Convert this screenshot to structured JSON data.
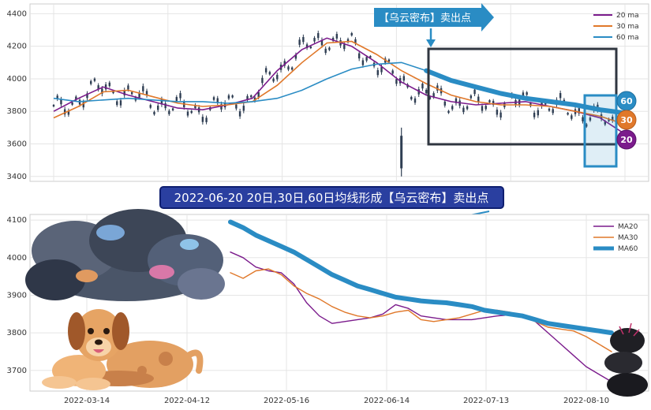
{
  "top_chart": {
    "banner": "【乌云密布】卖出点",
    "legend": [
      "20 ma",
      "30 ma",
      "60 ma"
    ],
    "badges": [
      "60",
      "30",
      "20"
    ],
    "colors": {
      "ma20": "#7b1b8c",
      "ma30": "#e0782a",
      "ma60": "#2a8cc4",
      "candle": "#2f3e53",
      "box": "#2f3640",
      "highlight": "#2a8cc4"
    }
  },
  "caption": "2022-06-20 20日,30日,60日均线形成【乌云密布】卖出点",
  "bottom_chart": {
    "legend": [
      "MA20",
      "MA30",
      "MA60"
    ],
    "colors": {
      "ma20": "#7b1b8c",
      "ma30": "#e0782a",
      "ma60": "#2a8cc4"
    }
  },
  "chart_data": [
    {
      "type": "line",
      "ylim": [
        3370,
        4460
      ],
      "yticks": [
        3400,
        3600,
        3800,
        4000,
        4200,
        4400
      ],
      "x_range": [
        0,
        230
      ],
      "series": [
        {
          "name": "20 ma",
          "x": [
            0,
            10,
            20,
            30,
            40,
            50,
            60,
            70,
            80,
            90,
            100,
            110,
            120,
            130,
            140,
            150,
            160,
            170,
            180,
            190,
            200,
            210,
            220,
            230
          ],
          "y": [
            3800,
            3880,
            3950,
            3900,
            3860,
            3820,
            3810,
            3840,
            3880,
            4050,
            4180,
            4250,
            4200,
            4100,
            3980,
            3900,
            3860,
            3840,
            3850,
            3860,
            3830,
            3800,
            3760,
            3660
          ]
        },
        {
          "name": "30 ma",
          "x": [
            0,
            10,
            20,
            30,
            40,
            50,
            60,
            70,
            80,
            90,
            100,
            110,
            120,
            130,
            140,
            150,
            160,
            170,
            180,
            190,
            200,
            210,
            220,
            230
          ],
          "y": [
            3760,
            3830,
            3920,
            3930,
            3890,
            3850,
            3830,
            3840,
            3860,
            3960,
            4100,
            4220,
            4230,
            4150,
            4050,
            3970,
            3900,
            3860,
            3840,
            3840,
            3830,
            3800,
            3770,
            3720
          ]
        },
        {
          "name": "60 ma",
          "x": [
            0,
            10,
            20,
            30,
            40,
            50,
            60,
            70,
            80,
            90,
            100,
            110,
            120,
            130,
            140,
            150,
            160,
            170,
            180,
            190,
            200,
            210,
            220,
            230
          ],
          "y": [
            3880,
            3860,
            3870,
            3880,
            3870,
            3860,
            3860,
            3850,
            3860,
            3880,
            3930,
            4000,
            4060,
            4090,
            4100,
            4050,
            3990,
            3950,
            3910,
            3880,
            3860,
            3840,
            3810,
            3790
          ]
        }
      ]
    },
    {
      "type": "line",
      "ylim": [
        3645,
        4115
      ],
      "yticks": [
        3700,
        3800,
        3900,
        4000,
        4100
      ],
      "xticks": [
        "2022-03-14",
        "2022-04-12",
        "2022-05-16",
        "2022-06-14",
        "2022-07-13",
        "2022-08-10"
      ],
      "series": [
        {
          "name": "MA20",
          "x": [
            0,
            4,
            8,
            12,
            16,
            20,
            24,
            28,
            32,
            36,
            40,
            44,
            48,
            52,
            56,
            60,
            64,
            68,
            72,
            76,
            80,
            84,
            88,
            92,
            96,
            100,
            104,
            108,
            112,
            116,
            120
          ],
          "y": [
            4015,
            4000,
            3975,
            3965,
            3960,
            3930,
            3880,
            3845,
            3825,
            3830,
            3835,
            3840,
            3850,
            3875,
            3865,
            3845,
            3840,
            3835,
            3835,
            3835,
            3840,
            3845,
            3848,
            3845,
            3830,
            3800,
            3770,
            3740,
            3710,
            3690,
            3670
          ]
        },
        {
          "name": "MA30",
          "x": [
            0,
            4,
            8,
            12,
            16,
            20,
            24,
            28,
            32,
            36,
            40,
            44,
            48,
            52,
            56,
            60,
            64,
            68,
            72,
            76,
            80,
            84,
            88,
            92,
            96,
            100,
            104,
            108,
            112,
            116,
            120
          ],
          "y": [
            3960,
            3945,
            3965,
            3970,
            3955,
            3925,
            3905,
            3890,
            3870,
            3855,
            3845,
            3840,
            3845,
            3855,
            3860,
            3835,
            3830,
            3835,
            3840,
            3850,
            3860,
            3860,
            3855,
            3845,
            3830,
            3815,
            3810,
            3805,
            3790,
            3770,
            3750
          ]
        },
        {
          "name": "MA60",
          "x": [
            0,
            4,
            8,
            12,
            16,
            20,
            24,
            28,
            32,
            36,
            40,
            44,
            48,
            52,
            56,
            60,
            64,
            68,
            72,
            76,
            80,
            84,
            88,
            92,
            96,
            100,
            104,
            108,
            112,
            116,
            120
          ],
          "y": [
            4095,
            4080,
            4060,
            4045,
            4030,
            4015,
            3995,
            3975,
            3955,
            3940,
            3925,
            3915,
            3905,
            3895,
            3890,
            3885,
            3882,
            3880,
            3875,
            3870,
            3860,
            3855,
            3850,
            3845,
            3835,
            3825,
            3820,
            3815,
            3810,
            3805,
            3800
          ]
        }
      ]
    }
  ]
}
